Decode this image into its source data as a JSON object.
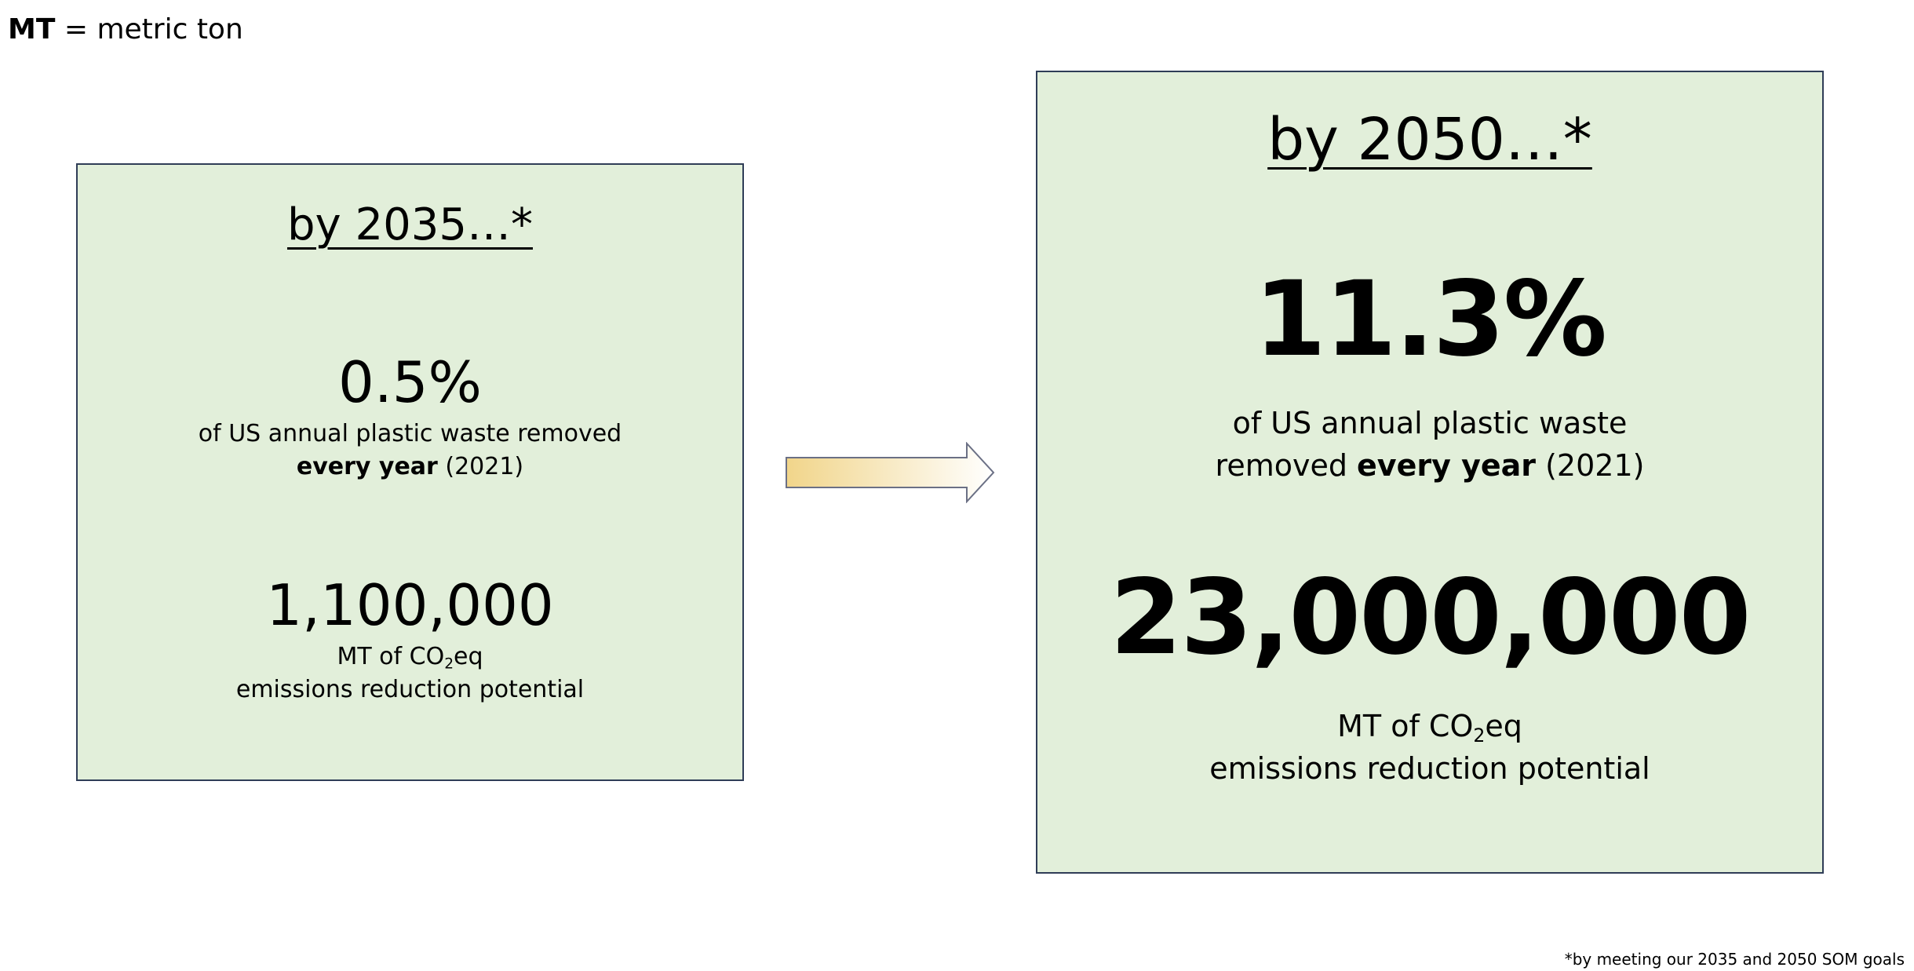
{
  "legend": {
    "abbr": "MT",
    "definition": " = metric ton"
  },
  "card_2035": {
    "heading": "by 2035…*",
    "stat1_value": "0.5%",
    "stat1_desc_line1": "of US annual plastic waste removed",
    "stat1_desc_bold": "every year",
    "stat1_desc_rest": " (2021)",
    "stat2_value": "1,100,000",
    "stat2_desc_prefix": "MT of CO",
    "stat2_desc_sub": "2",
    "stat2_desc_suffix": "eq",
    "stat2_desc_line2": "emissions reduction potential"
  },
  "card_2050": {
    "heading": "by 2050…*",
    "stat1_value": "11.3%",
    "stat1_desc_line1": "of US annual plastic waste",
    "stat1_desc_pre": "removed ",
    "stat1_desc_bold": "every year",
    "stat1_desc_rest": " (2021)",
    "stat2_value": "23,000,000",
    "stat2_desc_prefix": "MT of CO",
    "stat2_desc_sub": "2",
    "stat2_desc_suffix": "eq",
    "stat2_desc_line2": "emissions reduction potential"
  },
  "footnote": "*by meeting our 2035 and 2050 SOM goals",
  "colors": {
    "card_fill": "#e2efda",
    "card_border": "#2f3d57",
    "arrow_gradient_start": "#f1d58a",
    "arrow_gradient_end": "#ffffff",
    "arrow_stroke": "#6b7085"
  },
  "icons": {
    "arrow": "right-arrow-icon"
  }
}
